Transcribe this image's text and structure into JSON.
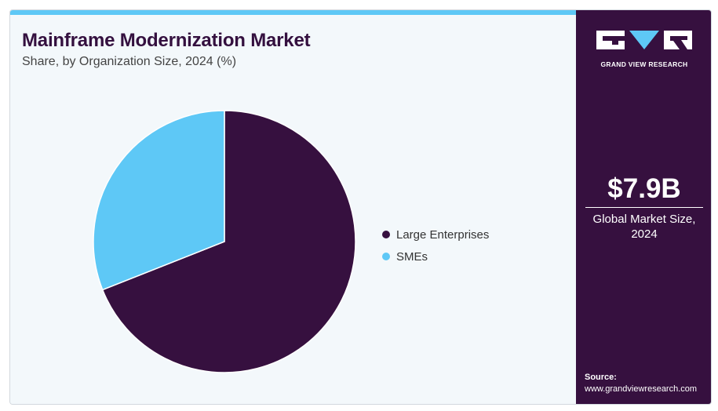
{
  "header": {
    "title": "Mainframe Modernization Market",
    "subtitle": "Share, by Organization Size, 2024 (%)"
  },
  "chart_data": {
    "type": "pie",
    "title": "Mainframe Modernization Market",
    "subtitle": "Share, by Organization Size, 2024 (%)",
    "slices": [
      {
        "name": "Large Enterprises",
        "value": 69,
        "color": "#36103f"
      },
      {
        "name": "SMEs",
        "value": 31,
        "color": "#5ec8f6"
      }
    ],
    "start_angle": "12 o'clock, clockwise",
    "legend_placement": "right"
  },
  "sidebar": {
    "logo_text": "GRAND VIEW RESEARCH",
    "market_size": "$7.9B",
    "market_size_caption_line1": "Global Market Size,",
    "market_size_caption_line2": "2024",
    "source_label": "Source:",
    "source_url": "www.grandviewresearch.com"
  },
  "colors": {
    "brand_dark": "#36103f",
    "brand_light": "#5ec8f6",
    "panel_background": "#f3f8fb"
  }
}
